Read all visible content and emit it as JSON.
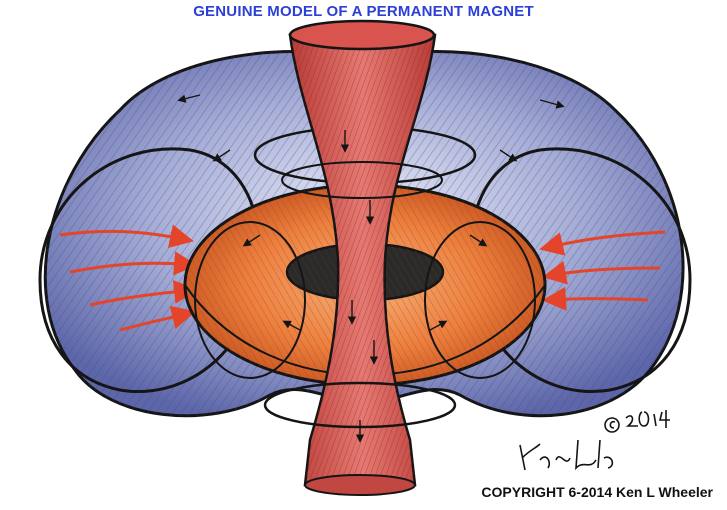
{
  "title": "GENUINE MODEL OF A PERMANENT MAGNET",
  "copyright": "COPYRIGHT 6-2014 Ken L Wheeler",
  "signature": "Ken L Wheeler © 2014",
  "colors": {
    "title": "#2c3fd6",
    "blue_torus": "#8a93c6",
    "blue_torus_dark": "#3d4691",
    "orange_torus": "#ea7a3c",
    "orange_torus_dark": "#b4471a",
    "red_funnel": "#d9544f",
    "red_funnel_dark": "#a8302c",
    "arrow_red": "#e4452a",
    "ink": "#151515"
  }
}
